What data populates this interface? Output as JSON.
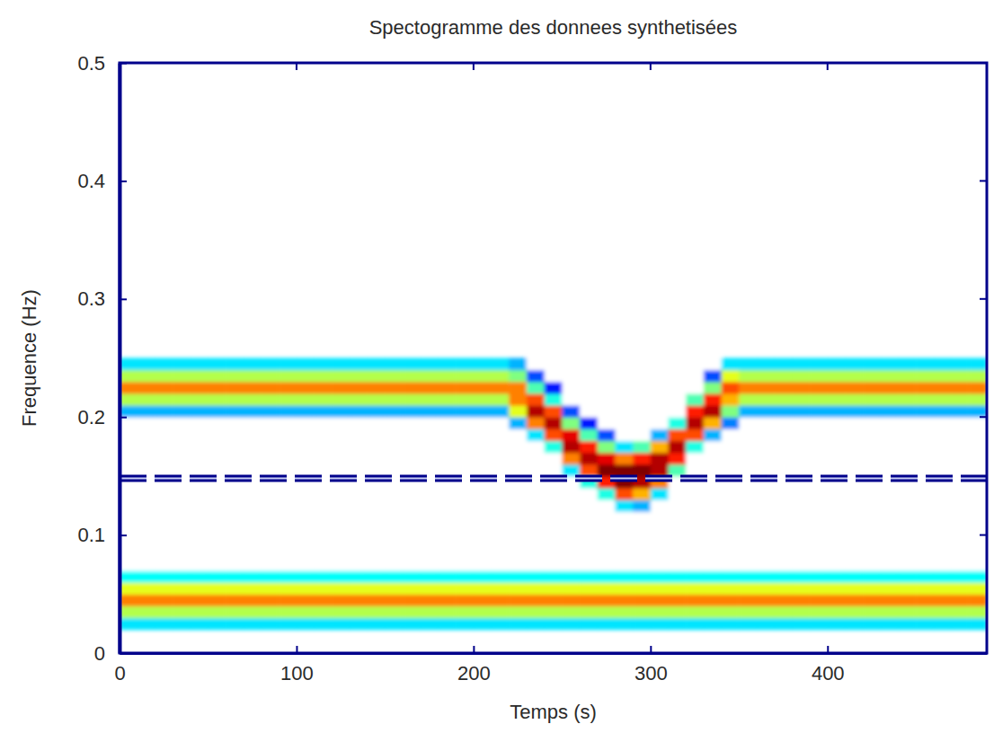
{
  "chart_data": {
    "type": "heatmap",
    "title": "Spectogramme des donnees synthetisées",
    "x_label": "Temps (s)",
    "y_label": "Frequence (Hz)",
    "xlim": [
      0,
      490
    ],
    "ylim": [
      0,
      0.5
    ],
    "xticks": [
      0,
      100,
      200,
      300,
      400
    ],
    "yticks": [
      0,
      0.1,
      0.2,
      0.3,
      0.4,
      0.5
    ],
    "grid": false,
    "color": "jet",
    "zlim": [
      0,
      1
    ],
    "reference_line": 0.148,
    "time_edges": [
      0,
      10,
      20,
      30,
      40,
      50,
      60,
      70,
      80,
      90,
      100,
      110,
      120,
      130,
      140,
      150,
      160,
      170,
      180,
      190,
      200,
      210,
      220,
      230,
      240,
      250,
      260,
      270,
      280,
      290,
      300,
      310,
      320,
      330,
      340,
      350,
      360,
      370,
      380,
      390,
      400,
      410,
      420,
      430,
      440,
      450,
      460,
      470,
      480,
      490
    ],
    "frequency_edges": [
      0.02,
      0.03,
      0.04,
      0.05,
      0.06,
      0.07,
      0.08,
      0.09,
      0.1,
      0.11,
      0.12,
      0.13,
      0.14,
      0.15,
      0.16,
      0.17,
      0.18,
      0.19,
      0.2,
      0.21,
      0.22,
      0.23,
      0.24,
      0.25
    ],
    "cells": [
      [
        0.35,
        0.55,
        0.75,
        0.6,
        0.38,
        0,
        0,
        0,
        0,
        0,
        0,
        0,
        0,
        0,
        0,
        0,
        0,
        0,
        0.3,
        0.55,
        0.75,
        0.55,
        0.35
      ],
      [
        0.35,
        0.55,
        0.75,
        0.6,
        0.38,
        0,
        0,
        0,
        0,
        0,
        0,
        0,
        0,
        0,
        0,
        0,
        0,
        0,
        0.3,
        0.55,
        0.75,
        0.55,
        0.35
      ],
      [
        0.35,
        0.55,
        0.75,
        0.6,
        0.38,
        0,
        0,
        0,
        0,
        0,
        0,
        0,
        0,
        0,
        0,
        0,
        0,
        0,
        0.3,
        0.55,
        0.75,
        0.55,
        0.35
      ],
      [
        0.35,
        0.55,
        0.75,
        0.6,
        0.38,
        0,
        0,
        0,
        0,
        0,
        0,
        0,
        0,
        0,
        0,
        0,
        0,
        0,
        0.3,
        0.55,
        0.75,
        0.55,
        0.35
      ],
      [
        0.35,
        0.55,
        0.75,
        0.6,
        0.38,
        0,
        0,
        0,
        0,
        0,
        0,
        0,
        0,
        0,
        0,
        0,
        0,
        0,
        0.3,
        0.55,
        0.75,
        0.55,
        0.35
      ],
      [
        0.35,
        0.55,
        0.75,
        0.6,
        0.38,
        0,
        0,
        0,
        0,
        0,
        0,
        0,
        0,
        0,
        0,
        0,
        0,
        0,
        0.3,
        0.55,
        0.75,
        0.55,
        0.35
      ],
      [
        0.35,
        0.55,
        0.75,
        0.6,
        0.38,
        0,
        0,
        0,
        0,
        0,
        0,
        0,
        0,
        0,
        0,
        0,
        0,
        0,
        0.3,
        0.55,
        0.75,
        0.55,
        0.35
      ],
      [
        0.35,
        0.55,
        0.75,
        0.6,
        0.38,
        0,
        0,
        0,
        0,
        0,
        0,
        0,
        0,
        0,
        0,
        0,
        0,
        0,
        0.3,
        0.55,
        0.75,
        0.55,
        0.35
      ],
      [
        0.35,
        0.55,
        0.75,
        0.6,
        0.38,
        0,
        0,
        0,
        0,
        0,
        0,
        0,
        0,
        0,
        0,
        0,
        0,
        0,
        0.3,
        0.55,
        0.75,
        0.55,
        0.35
      ],
      [
        0.35,
        0.55,
        0.75,
        0.6,
        0.38,
        0,
        0,
        0,
        0,
        0,
        0,
        0,
        0,
        0,
        0,
        0,
        0,
        0,
        0.3,
        0.55,
        0.75,
        0.55,
        0.35
      ],
      [
        0.35,
        0.55,
        0.75,
        0.6,
        0.38,
        0,
        0,
        0,
        0,
        0,
        0,
        0,
        0,
        0,
        0,
        0,
        0,
        0,
        0.3,
        0.55,
        0.75,
        0.55,
        0.35
      ],
      [
        0.35,
        0.55,
        0.75,
        0.6,
        0.38,
        0,
        0,
        0,
        0,
        0,
        0,
        0,
        0,
        0,
        0,
        0,
        0,
        0,
        0.3,
        0.55,
        0.75,
        0.55,
        0.35
      ],
      [
        0.35,
        0.55,
        0.75,
        0.6,
        0.38,
        0,
        0,
        0,
        0,
        0,
        0,
        0,
        0,
        0,
        0,
        0,
        0,
        0,
        0.3,
        0.55,
        0.75,
        0.55,
        0.35
      ],
      [
        0.35,
        0.55,
        0.75,
        0.6,
        0.38,
        0,
        0,
        0,
        0,
        0,
        0,
        0,
        0,
        0,
        0,
        0,
        0,
        0,
        0.3,
        0.55,
        0.75,
        0.55,
        0.35
      ],
      [
        0.35,
        0.55,
        0.75,
        0.6,
        0.38,
        0,
        0,
        0,
        0,
        0,
        0,
        0,
        0,
        0,
        0,
        0,
        0,
        0,
        0.3,
        0.55,
        0.75,
        0.55,
        0.35
      ],
      [
        0.35,
        0.55,
        0.75,
        0.6,
        0.38,
        0,
        0,
        0,
        0,
        0,
        0,
        0,
        0,
        0,
        0,
        0,
        0,
        0,
        0.3,
        0.55,
        0.75,
        0.55,
        0.35
      ],
      [
        0.35,
        0.55,
        0.75,
        0.6,
        0.38,
        0,
        0,
        0,
        0,
        0,
        0,
        0,
        0,
        0,
        0,
        0,
        0,
        0,
        0.3,
        0.55,
        0.75,
        0.55,
        0.35
      ],
      [
        0.35,
        0.55,
        0.75,
        0.6,
        0.38,
        0,
        0,
        0,
        0,
        0,
        0,
        0,
        0,
        0,
        0,
        0,
        0,
        0,
        0.3,
        0.55,
        0.75,
        0.55,
        0.35
      ],
      [
        0.35,
        0.55,
        0.75,
        0.6,
        0.38,
        0,
        0,
        0,
        0,
        0,
        0,
        0,
        0,
        0,
        0,
        0,
        0,
        0,
        0.3,
        0.55,
        0.75,
        0.55,
        0.35
      ],
      [
        0.35,
        0.55,
        0.75,
        0.6,
        0.38,
        0,
        0,
        0,
        0,
        0,
        0,
        0,
        0,
        0,
        0,
        0,
        0,
        0,
        0.3,
        0.55,
        0.75,
        0.55,
        0.35
      ],
      [
        0.35,
        0.55,
        0.75,
        0.6,
        0.38,
        0,
        0,
        0,
        0,
        0,
        0,
        0,
        0,
        0,
        0,
        0,
        0,
        0,
        0.3,
        0.55,
        0.75,
        0.55,
        0.35
      ],
      [
        0.35,
        0.55,
        0.75,
        0.6,
        0.38,
        0,
        0,
        0,
        0,
        0,
        0,
        0,
        0,
        0,
        0,
        0,
        0,
        0,
        0.3,
        0.55,
        0.75,
        0.55,
        0.35
      ],
      [
        0.35,
        0.55,
        0.75,
        0.6,
        0.38,
        0,
        0,
        0,
        0,
        0,
        0,
        0,
        0,
        0,
        0,
        0,
        0,
        0.3,
        0.6,
        0.75,
        0.75,
        0.5,
        0.3
      ],
      [
        0.35,
        0.55,
        0.75,
        0.6,
        0.38,
        0,
        0,
        0,
        0,
        0,
        0,
        0,
        0,
        0,
        0,
        0,
        0.35,
        0.75,
        0.95,
        0.8,
        0.45,
        0.2,
        0
      ],
      [
        0.35,
        0.55,
        0.75,
        0.6,
        0.38,
        0,
        0,
        0,
        0,
        0,
        0,
        0,
        0,
        0,
        0,
        0.4,
        0.8,
        0.95,
        0.8,
        0.4,
        0.15,
        0,
        0
      ],
      [
        0.35,
        0.55,
        0.75,
        0.6,
        0.38,
        0,
        0,
        0,
        0,
        0,
        0,
        0,
        0,
        0.35,
        0.75,
        0.95,
        0.9,
        0.5,
        0.2,
        0,
        0,
        0,
        0
      ],
      [
        0.35,
        0.55,
        0.75,
        0.6,
        0.38,
        0,
        0,
        0,
        0,
        0,
        0,
        0,
        0.4,
        0.8,
        0.95,
        0.85,
        0.45,
        0.15,
        0,
        0,
        0,
        0,
        0
      ],
      [
        0.35,
        0.55,
        0.75,
        0.6,
        0.38,
        0,
        0,
        0,
        0,
        0,
        0,
        0.4,
        0.85,
        1,
        0.9,
        0.5,
        0.2,
        0,
        0,
        0,
        0,
        0,
        0
      ],
      [
        0.35,
        0.55,
        0.75,
        0.6,
        0.38,
        0,
        0,
        0,
        0,
        0,
        0.35,
        0.8,
        1,
        1,
        0.75,
        0.35,
        0,
        0,
        0,
        0,
        0,
        0,
        0
      ],
      [
        0.35,
        0.55,
        0.75,
        0.6,
        0.38,
        0,
        0,
        0,
        0,
        0,
        0.3,
        0.7,
        0.95,
        1,
        0.85,
        0.45,
        0,
        0,
        0,
        0,
        0,
        0,
        0
      ],
      [
        0.35,
        0.55,
        0.75,
        0.6,
        0.38,
        0,
        0,
        0,
        0,
        0,
        0,
        0.35,
        0.75,
        0.95,
        0.95,
        0.7,
        0.3,
        0,
        0,
        0,
        0,
        0,
        0
      ],
      [
        0.35,
        0.55,
        0.75,
        0.6,
        0.38,
        0,
        0,
        0,
        0,
        0,
        0,
        0,
        0,
        0.45,
        0.85,
        0.95,
        0.8,
        0.4,
        0,
        0,
        0,
        0,
        0
      ],
      [
        0.35,
        0.55,
        0.75,
        0.6,
        0.38,
        0,
        0,
        0,
        0,
        0,
        0,
        0,
        0,
        0,
        0,
        0.4,
        0.8,
        0.95,
        0.85,
        0.45,
        0,
        0,
        0
      ],
      [
        0.35,
        0.55,
        0.75,
        0.6,
        0.38,
        0,
        0,
        0,
        0,
        0,
        0,
        0,
        0,
        0,
        0,
        0,
        0.3,
        0.7,
        0.95,
        0.85,
        0.5,
        0.2,
        0
      ],
      [
        0.35,
        0.55,
        0.75,
        0.6,
        0.38,
        0,
        0,
        0,
        0,
        0,
        0,
        0,
        0,
        0,
        0,
        0,
        0,
        0.25,
        0.5,
        0.7,
        0.8,
        0.6,
        0.35
      ],
      [
        0.35,
        0.55,
        0.75,
        0.6,
        0.38,
        0,
        0,
        0,
        0,
        0,
        0,
        0,
        0,
        0,
        0,
        0,
        0,
        0,
        0.3,
        0.55,
        0.75,
        0.55,
        0.35
      ],
      [
        0.35,
        0.55,
        0.75,
        0.6,
        0.38,
        0,
        0,
        0,
        0,
        0,
        0,
        0,
        0,
        0,
        0,
        0,
        0,
        0,
        0.3,
        0.55,
        0.75,
        0.55,
        0.35
      ],
      [
        0.35,
        0.55,
        0.75,
        0.6,
        0.38,
        0,
        0,
        0,
        0,
        0,
        0,
        0,
        0,
        0,
        0,
        0,
        0,
        0,
        0.3,
        0.55,
        0.75,
        0.55,
        0.35
      ],
      [
        0.35,
        0.55,
        0.75,
        0.6,
        0.38,
        0,
        0,
        0,
        0,
        0,
        0,
        0,
        0,
        0,
        0,
        0,
        0,
        0,
        0.3,
        0.55,
        0.75,
        0.55,
        0.35
      ],
      [
        0.35,
        0.55,
        0.75,
        0.6,
        0.38,
        0,
        0,
        0,
        0,
        0,
        0,
        0,
        0,
        0,
        0,
        0,
        0,
        0,
        0.3,
        0.55,
        0.75,
        0.55,
        0.35
      ],
      [
        0.35,
        0.55,
        0.75,
        0.6,
        0.38,
        0,
        0,
        0,
        0,
        0,
        0,
        0,
        0,
        0,
        0,
        0,
        0,
        0,
        0.3,
        0.55,
        0.75,
        0.55,
        0.35
      ],
      [
        0.35,
        0.55,
        0.75,
        0.6,
        0.38,
        0,
        0,
        0,
        0,
        0,
        0,
        0,
        0,
        0,
        0,
        0,
        0,
        0,
        0.3,
        0.55,
        0.75,
        0.55,
        0.35
      ],
      [
        0.35,
        0.55,
        0.75,
        0.6,
        0.38,
        0,
        0,
        0,
        0,
        0,
        0,
        0,
        0,
        0,
        0,
        0,
        0,
        0,
        0.3,
        0.55,
        0.75,
        0.55,
        0.35
      ],
      [
        0.35,
        0.55,
        0.75,
        0.6,
        0.38,
        0,
        0,
        0,
        0,
        0,
        0,
        0,
        0,
        0,
        0,
        0,
        0,
        0,
        0.3,
        0.55,
        0.75,
        0.55,
        0.35
      ],
      [
        0.35,
        0.55,
        0.75,
        0.6,
        0.38,
        0,
        0,
        0,
        0,
        0,
        0,
        0,
        0,
        0,
        0,
        0,
        0,
        0,
        0.3,
        0.55,
        0.75,
        0.55,
        0.35
      ],
      [
        0.35,
        0.55,
        0.75,
        0.6,
        0.38,
        0,
        0,
        0,
        0,
        0,
        0,
        0,
        0,
        0,
        0,
        0,
        0,
        0,
        0.3,
        0.55,
        0.75,
        0.55,
        0.35
      ],
      [
        0.35,
        0.55,
        0.75,
        0.6,
        0.38,
        0,
        0,
        0,
        0,
        0,
        0,
        0,
        0,
        0,
        0,
        0,
        0,
        0,
        0.3,
        0.55,
        0.75,
        0.55,
        0.35
      ],
      [
        0.35,
        0.55,
        0.75,
        0.6,
        0.38,
        0,
        0,
        0,
        0,
        0,
        0,
        0,
        0,
        0,
        0,
        0,
        0,
        0,
        0.3,
        0.55,
        0.75,
        0.55,
        0.35
      ],
      [
        0.35,
        0.55,
        0.75,
        0.6,
        0.38,
        0,
        0,
        0,
        0,
        0,
        0,
        0,
        0,
        0,
        0,
        0,
        0,
        0,
        0.3,
        0.55,
        0.75,
        0.55,
        0.35
      ]
    ]
  }
}
